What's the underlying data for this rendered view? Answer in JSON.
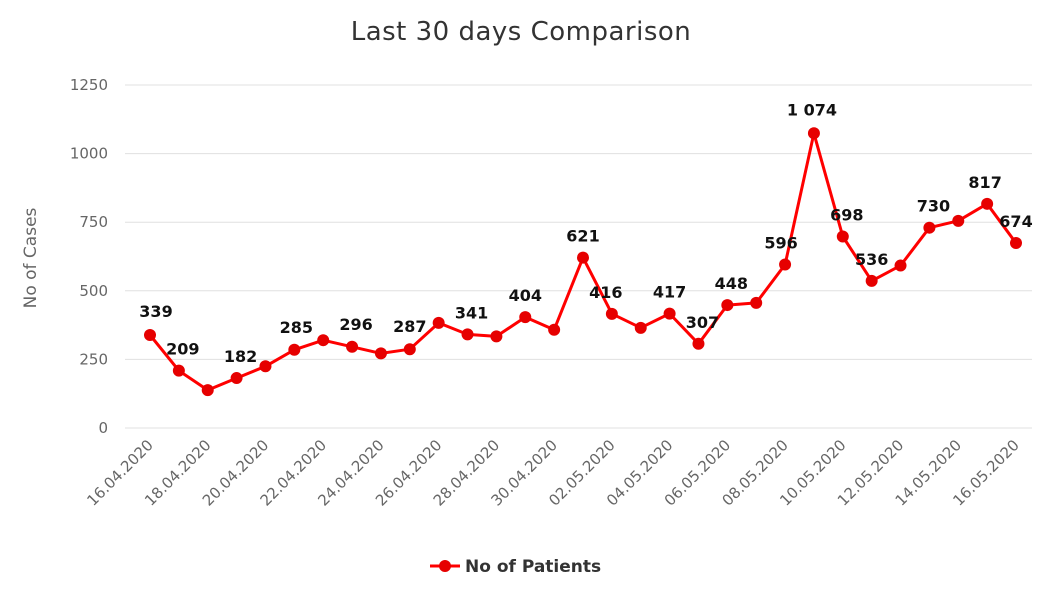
{
  "chart_data": {
    "type": "line",
    "title": "Last 30 days Comparison",
    "xlabel": "",
    "ylabel": "No of Cases",
    "ylim": [
      0,
      1250
    ],
    "yticks": [
      0,
      250,
      500,
      750,
      1000,
      1250
    ],
    "ytick_labels": [
      "0",
      "250",
      "500",
      "750",
      "1000",
      "1250"
    ],
    "grid": true,
    "legend_position": "bottom",
    "categories": [
      "16.04.2020",
      "17.04.2020",
      "18.04.2020",
      "19.04.2020",
      "20.04.2020",
      "21.04.2020",
      "22.04.2020",
      "23.04.2020",
      "24.04.2020",
      "25.04.2020",
      "26.04.2020",
      "27.04.2020",
      "28.04.2020",
      "29.04.2020",
      "30.04.2020",
      "01.05.2020",
      "02.05.2020",
      "03.05.2020",
      "04.05.2020",
      "05.05.2020",
      "06.05.2020",
      "07.05.2020",
      "08.05.2020",
      "09.05.2020",
      "10.05.2020",
      "11.05.2020",
      "12.05.2020",
      "13.05.2020",
      "14.05.2020",
      "15.05.2020",
      "16.05.2020"
    ],
    "xtick_labels": [
      "16.04.2020",
      "18.04.2020",
      "20.04.2020",
      "22.04.2020",
      "24.04.2020",
      "26.04.2020",
      "28.04.2020",
      "30.04.2020",
      "02.05.2020",
      "04.05.2020",
      "06.05.2020",
      "08.05.2020",
      "10.05.2020",
      "12.05.2020",
      "14.05.2020",
      "16.05.2020"
    ],
    "series": [
      {
        "name": "No of Patients",
        "color": "#ff0000",
        "marker_color": "#e60000",
        "values": [
          339,
          209,
          138,
          182,
          225,
          285,
          320,
          296,
          272,
          287,
          383,
          341,
          334,
          404,
          358,
          621,
          416,
          365,
          417,
          307,
          448,
          456,
          596,
          1074,
          698,
          536,
          592,
          730,
          755,
          817,
          674
        ],
        "data_labels": [
          "339",
          "209",
          "",
          "182",
          "",
          "285",
          "",
          "296",
          "",
          "287",
          "",
          "341",
          "",
          "404",
          "",
          "621",
          "416",
          "",
          "417",
          "307",
          "448",
          "",
          "596",
          "1 074",
          "698",
          "536",
          "",
          "730",
          "",
          "817",
          "674"
        ]
      }
    ]
  }
}
